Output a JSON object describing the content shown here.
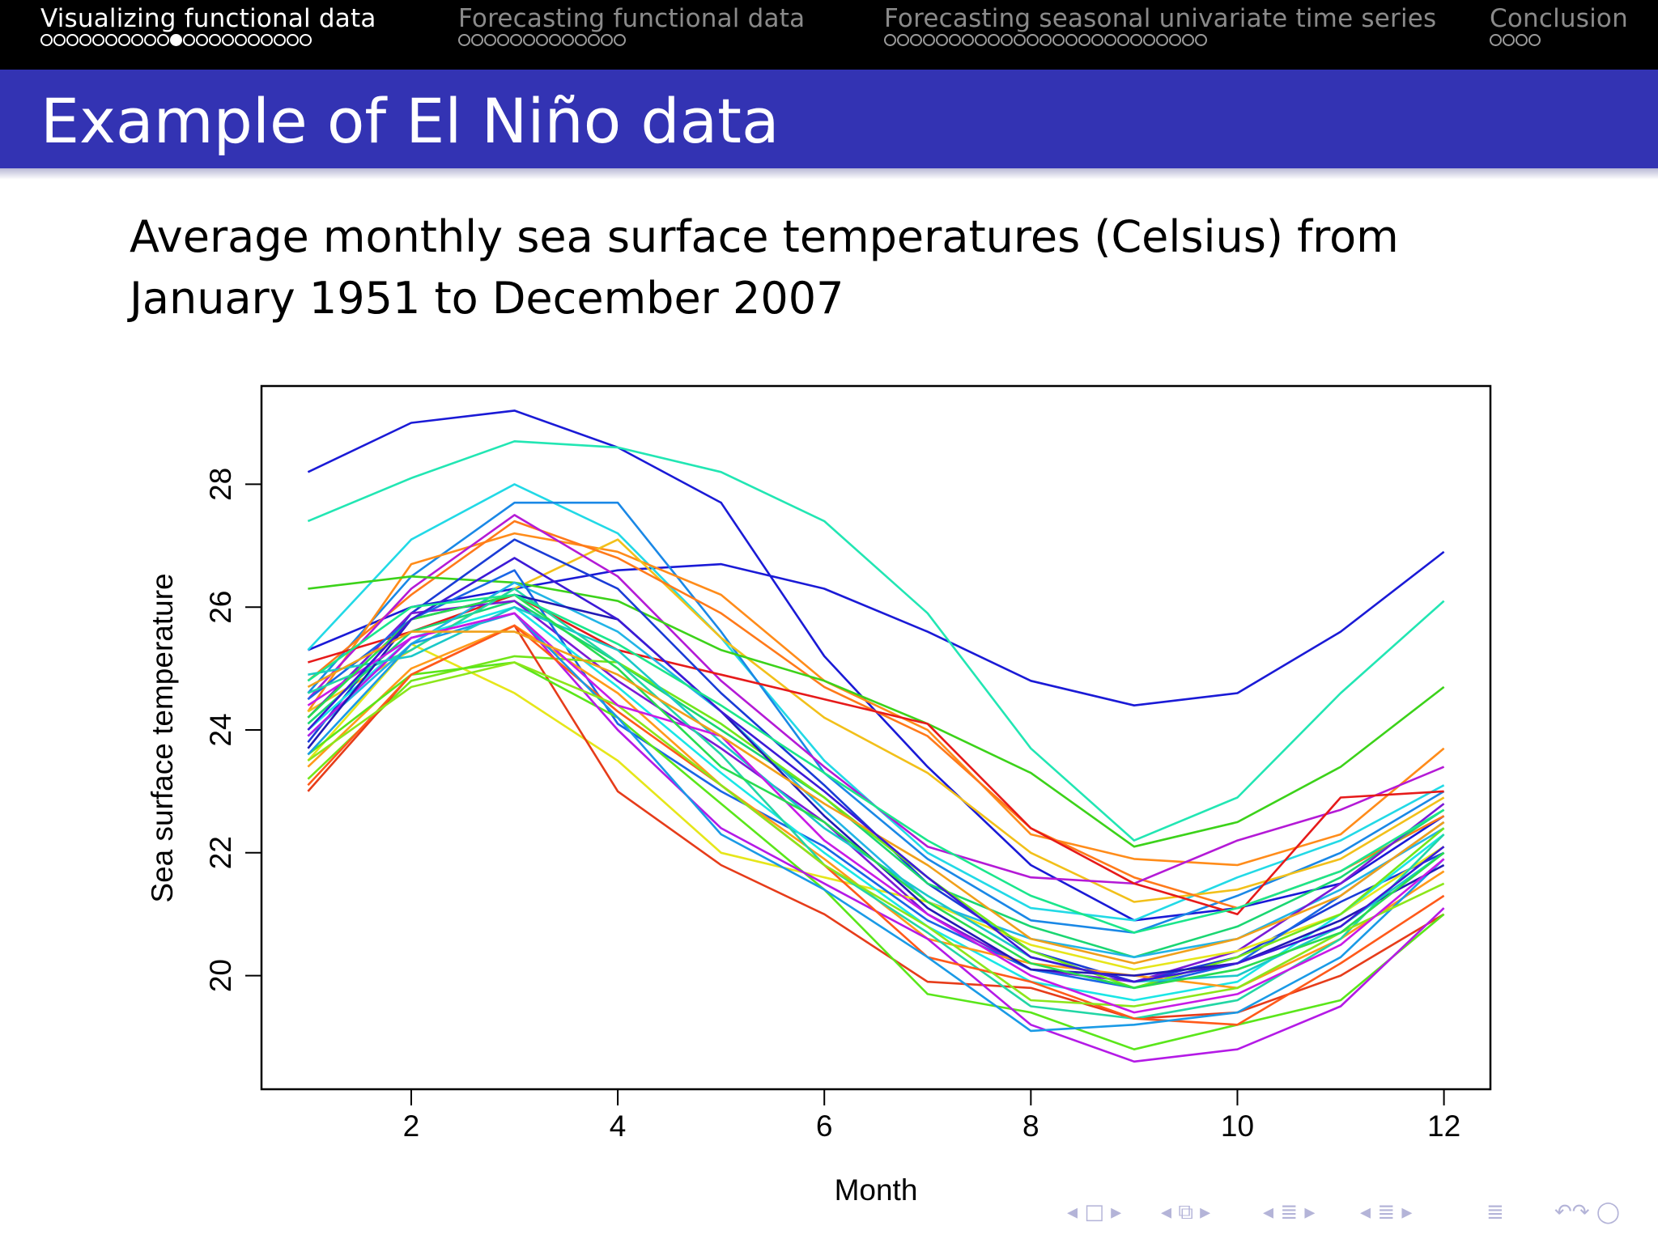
{
  "nav": {
    "sections": [
      {
        "label": "Visualizing functional data",
        "dots": 21,
        "filled": 10,
        "active": true
      },
      {
        "label": "Forecasting functional data",
        "dots": 13,
        "filled": -1,
        "active": false
      },
      {
        "label": "Forecasting seasonal univariate time series",
        "dots": 25,
        "filled": -1,
        "active": false
      },
      {
        "label": "Conclusion",
        "dots": 4,
        "filled": -1,
        "active": false
      }
    ]
  },
  "frame": {
    "title": "Example of El Niño data",
    "description": "Average monthly sea surface temperatures (Celsius) from January 1951 to December 2007"
  },
  "beamer_nav": {
    "symbols": [
      "◂ □ ▸",
      "◂ ⧉ ▸",
      "◂ ≣ ▸",
      "◂ ≣ ▸",
      "≣",
      "↶↷ ◯"
    ]
  },
  "colors": {
    "title_bar": "#3333b3",
    "nav_bar": "#000000",
    "nav_active": "#ffffff",
    "nav_inactive": "#8a8a8a",
    "nav_symbols": "#b4b4d8"
  },
  "chart_data": {
    "type": "line",
    "title": "",
    "xlabel": "Month",
    "ylabel": "Sea surface temperature",
    "xlim": [
      0.55,
      12.45
    ],
    "ylim": [
      18.15,
      29.6
    ],
    "xticks": [
      2,
      4,
      6,
      8,
      10,
      12
    ],
    "yticks": [
      20,
      22,
      24,
      26,
      28
    ],
    "grid": false,
    "legend": "none",
    "x": [
      1,
      2,
      3,
      4,
      5,
      6,
      7,
      8,
      9,
      10,
      11,
      12
    ],
    "series": [
      {
        "color": "#1a1ad6",
        "values": [
          28.2,
          29.0,
          29.2,
          28.6,
          27.7,
          25.2,
          23.4,
          21.8,
          20.9,
          21.1,
          21.5,
          22.6
        ]
      },
      {
        "color": "#1a1ad6",
        "values": [
          25.3,
          26.0,
          26.3,
          26.6,
          26.7,
          26.3,
          25.6,
          24.8,
          24.4,
          24.6,
          25.6,
          26.9
        ]
      },
      {
        "color": "#22e6b3",
        "values": [
          27.4,
          28.1,
          28.7,
          28.6,
          28.2,
          27.4,
          25.9,
          23.7,
          22.2,
          22.9,
          24.6,
          26.1
        ]
      },
      {
        "color": "#22d9e6",
        "values": [
          25.3,
          27.1,
          28.0,
          27.2,
          25.5,
          23.5,
          22.0,
          21.1,
          20.9,
          21.6,
          22.2,
          23.1
        ]
      },
      {
        "color": "#1a88e6",
        "values": [
          24.6,
          26.5,
          27.7,
          27.7,
          25.6,
          23.3,
          21.9,
          20.9,
          20.7,
          21.3,
          22.0,
          23.0
        ]
      },
      {
        "color": "#ff8c1a",
        "values": [
          24.3,
          26.7,
          27.2,
          26.9,
          26.2,
          24.8,
          24.0,
          22.3,
          21.9,
          21.8,
          22.3,
          23.7
        ]
      },
      {
        "color": "#f2c01a",
        "values": [
          24.3,
          25.3,
          26.3,
          27.1,
          25.5,
          24.2,
          23.3,
          22.0,
          21.2,
          21.4,
          21.9,
          22.9
        ]
      },
      {
        "color": "#ff7a1a",
        "values": [
          24.8,
          26.2,
          27.4,
          26.8,
          25.9,
          24.7,
          23.9,
          22.4,
          21.6,
          21.1,
          21.7,
          22.6
        ]
      },
      {
        "color": "#b41ad6",
        "values": [
          24.5,
          26.3,
          27.5,
          26.5,
          24.8,
          23.4,
          22.1,
          21.6,
          21.5,
          22.2,
          22.7,
          23.4
        ]
      },
      {
        "color": "#3cd21a",
        "values": [
          26.3,
          26.5,
          26.4,
          26.1,
          25.3,
          24.8,
          24.1,
          23.3,
          22.1,
          22.5,
          23.4,
          24.7
        ]
      },
      {
        "color": "#e61a1a",
        "values": [
          25.1,
          25.6,
          26.2,
          25.3,
          24.9,
          24.5,
          24.1,
          22.4,
          21.5,
          21.0,
          22.9,
          23.0
        ]
      },
      {
        "color": "#1a3cd6",
        "values": [
          23.8,
          25.9,
          27.1,
          26.3,
          24.6,
          23.1,
          21.5,
          20.4,
          19.9,
          20.3,
          21.2,
          22.0
        ]
      },
      {
        "color": "#1ad672",
        "values": [
          24.1,
          25.6,
          26.1,
          25.1,
          24.0,
          22.9,
          21.5,
          20.8,
          20.3,
          20.8,
          21.6,
          22.7
        ]
      },
      {
        "color": "#22b4e6",
        "values": [
          23.9,
          25.4,
          26.4,
          25.6,
          24.3,
          22.7,
          21.2,
          20.6,
          20.3,
          20.6,
          21.4,
          22.4
        ]
      },
      {
        "color": "#7a1ad6",
        "values": [
          24.2,
          25.9,
          26.1,
          24.8,
          23.7,
          22.5,
          21.0,
          20.1,
          19.9,
          20.4,
          21.5,
          22.8
        ]
      },
      {
        "color": "#e6e61a",
        "values": [
          23.5,
          25.4,
          24.6,
          23.5,
          22.0,
          21.6,
          21.2,
          20.5,
          20.1,
          20.4,
          21.0,
          22.1
        ]
      },
      {
        "color": "#1a66e6",
        "values": [
          24.5,
          25.8,
          26.6,
          24.1,
          23.0,
          22.1,
          20.9,
          20.1,
          19.8,
          20.2,
          21.3,
          22.5
        ]
      },
      {
        "color": "#1ae6e6",
        "values": [
          24.0,
          25.5,
          26.0,
          24.7,
          23.3,
          22.0,
          20.8,
          19.9,
          19.6,
          19.9,
          21.0,
          22.3
        ]
      },
      {
        "color": "#72e61a",
        "values": [
          23.2,
          24.8,
          25.2,
          25.1,
          24.1,
          22.9,
          21.6,
          20.4,
          19.8,
          20.3,
          21.0,
          22.4
        ]
      },
      {
        "color": "#ff9a1a",
        "values": [
          23.4,
          25.0,
          25.7,
          24.6,
          23.1,
          21.9,
          20.6,
          20.2,
          20.0,
          19.8,
          20.6,
          21.7
        ]
      },
      {
        "color": "#e63c1a",
        "values": [
          23.0,
          24.9,
          25.7,
          23.0,
          21.8,
          21.0,
          19.9,
          19.8,
          19.3,
          19.4,
          20.0,
          21.0
        ]
      },
      {
        "color": "#22d6a5",
        "values": [
          24.6,
          25.3,
          26.3,
          25.1,
          23.6,
          21.8,
          20.7,
          19.5,
          19.3,
          19.6,
          20.6,
          22.3
        ]
      },
      {
        "color": "#5ae61a",
        "values": [
          23.6,
          24.9,
          25.1,
          24.2,
          22.8,
          21.4,
          19.7,
          19.4,
          18.8,
          19.2,
          19.6,
          21.0
        ]
      },
      {
        "color": "#b41ae6",
        "values": [
          23.9,
          25.5,
          25.9,
          24.0,
          22.4,
          21.5,
          20.6,
          19.2,
          18.6,
          18.8,
          19.5,
          21.1
        ]
      },
      {
        "color": "#ff5a1a",
        "values": [
          23.1,
          24.9,
          25.7,
          24.3,
          23.1,
          21.8,
          20.3,
          19.9,
          19.3,
          19.2,
          20.2,
          21.3
        ]
      },
      {
        "color": "#1a9ae6",
        "values": [
          23.6,
          25.4,
          25.9,
          24.2,
          22.3,
          21.4,
          20.3,
          19.1,
          19.2,
          19.4,
          20.3,
          21.9
        ]
      },
      {
        "color": "#8ce61a",
        "values": [
          23.5,
          24.7,
          25.1,
          24.4,
          23.1,
          21.8,
          20.8,
          19.6,
          19.5,
          19.8,
          20.7,
          21.5
        ]
      },
      {
        "color": "#221ab4",
        "values": [
          23.7,
          25.8,
          26.2,
          25.8,
          24.3,
          22.6,
          21.1,
          20.1,
          20.0,
          20.2,
          20.9,
          21.8
        ]
      },
      {
        "color": "#1ac8c8",
        "values": [
          24.9,
          25.2,
          26.0,
          25.3,
          23.8,
          22.4,
          21.3,
          20.3,
          19.9,
          20.0,
          20.8,
          22.0
        ]
      },
      {
        "color": "#c81ae6",
        "values": [
          24.4,
          25.5,
          25.9,
          24.4,
          23.9,
          22.2,
          21.0,
          20.0,
          19.4,
          19.7,
          20.5,
          21.9
        ]
      },
      {
        "color": "#28dc50",
        "values": [
          24.2,
          25.8,
          26.2,
          25.0,
          23.4,
          22.5,
          21.2,
          20.2,
          19.8,
          20.1,
          20.7,
          22.0
        ]
      },
      {
        "color": "#f0a01a",
        "values": [
          24.7,
          25.6,
          25.6,
          24.9,
          23.9,
          22.8,
          21.8,
          20.6,
          20.2,
          20.6,
          21.3,
          22.5
        ]
      },
      {
        "color": "#3c1ad6",
        "values": [
          24.0,
          25.8,
          26.8,
          25.8,
          24.3,
          23.0,
          21.6,
          20.3,
          19.9,
          20.2,
          20.8,
          22.1
        ]
      },
      {
        "color": "#1ae68c",
        "values": [
          24.8,
          26.0,
          26.2,
          25.4,
          24.4,
          23.3,
          22.2,
          21.3,
          20.7,
          21.1,
          21.7,
          22.7
        ]
      }
    ]
  }
}
